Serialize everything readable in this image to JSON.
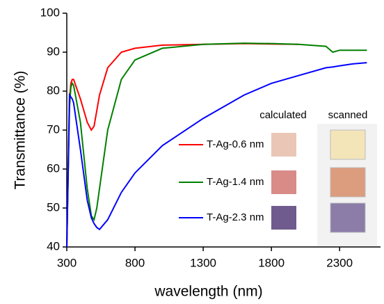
{
  "chart_data": {
    "type": "line",
    "x_label": "wavelength (nm)",
    "y_label": "Transmittance (%)",
    "x": [
      300,
      320,
      330,
      340,
      350,
      400,
      450,
      480,
      500,
      520,
      540,
      600,
      700,
      800,
      1000,
      1300,
      1600,
      1800,
      2000,
      2200,
      2250,
      2300,
      2400,
      2500
    ],
    "series": [
      {
        "name": "T-Ag-0.6 nm",
        "color": "#ff0000",
        "values": [
          40,
          78,
          82,
          83,
          83,
          78,
          72,
          70,
          71,
          75,
          79,
          86,
          90,
          91,
          91.8,
          92,
          92.2,
          92.1,
          92,
          null,
          null,
          null,
          null,
          null
        ]
      },
      {
        "name": "T-Ag-1.4 nm",
        "color": "#008000",
        "values": [
          40,
          76,
          81,
          82,
          81.5,
          72,
          55,
          48,
          47,
          50,
          55,
          70,
          83,
          88,
          91,
          92,
          92.3,
          92.2,
          92,
          91.5,
          90,
          90.5,
          90.5,
          90.5
        ]
      },
      {
        "name": "T-Ag-2.3 nm",
        "color": "#0000ff",
        "values": [
          40,
          79,
          78.5,
          78,
          77,
          65,
          52,
          47.5,
          46,
          45,
          44.5,
          47,
          54,
          59,
          66,
          73,
          79,
          82,
          84,
          86,
          86.2,
          86.5,
          87,
          87.3
        ]
      }
    ],
    "xlim": [
      300,
      2600
    ],
    "xticks": [
      300,
      800,
      1300,
      1800,
      2300
    ],
    "ylim": [
      40,
      100
    ],
    "yticks": [
      40,
      50,
      60,
      70,
      80,
      90,
      100
    ],
    "inset": {
      "headers": [
        "calculated",
        "scanned"
      ],
      "calculated_colors": [
        "#e9c6b6",
        "#d98b88",
        "#6f5b8d"
      ],
      "scanned_colors": [
        "#f4e5b9",
        "#dc9c7e",
        "#8b7ca8"
      ]
    }
  }
}
